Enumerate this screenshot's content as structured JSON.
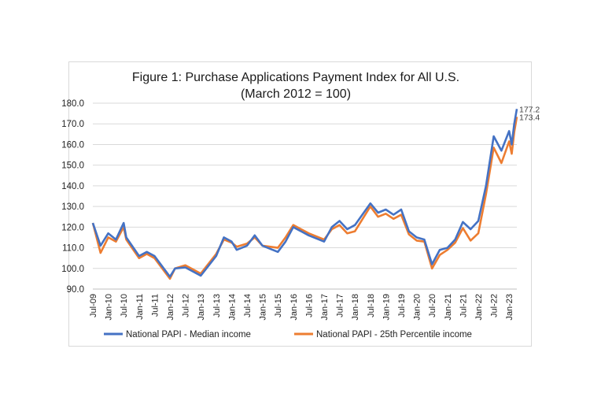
{
  "chart_data": {
    "type": "line",
    "title": "Figure 1: Purchase Applications Payment Index for All U.S.",
    "subtitle": "(March 2012 = 100)",
    "xlabel": "",
    "ylabel": "",
    "ylim": [
      90,
      180
    ],
    "y_ticks": [
      "90.0",
      "100.0",
      "110.0",
      "120.0",
      "130.0",
      "140.0",
      "150.0",
      "160.0",
      "170.0",
      "180.0"
    ],
    "x_ticks": [
      "Jul-09",
      "Jan-10",
      "Jul-10",
      "Jan-11",
      "Jul-11",
      "Jan-12",
      "Jul-12",
      "Jan-13",
      "Jul-13",
      "Jan-14",
      "Jul-14",
      "Jan-15",
      "Jul-15",
      "Jan-16",
      "Jul-16",
      "Jan-17",
      "Jul-17",
      "Jan-18",
      "Jul-18",
      "Jan-19",
      "Jul-19",
      "Jan-20",
      "Jul-20",
      "Jan-21",
      "Jul-21",
      "Jan-22",
      "Jul-22",
      "Jan-23"
    ],
    "grid": true,
    "legend_position": "bottom",
    "x_start": "Jul-09",
    "x_end": "Apr-23",
    "series": [
      {
        "name": "National PAPI - Median income",
        "color": "#4472C4",
        "end_label": "177.2",
        "points": [
          [
            "Jul-09",
            122
          ],
          [
            "Oct-09",
            111
          ],
          [
            "Jan-10",
            117
          ],
          [
            "Apr-10",
            114
          ],
          [
            "Jul-10",
            122
          ],
          [
            "Aug-10",
            115
          ],
          [
            "Jan-11",
            106
          ],
          [
            "Apr-11",
            108
          ],
          [
            "Jul-11",
            106
          ],
          [
            "Jan-12",
            96
          ],
          [
            "Mar-12",
            100
          ],
          [
            "Jul-12",
            100.5
          ],
          [
            "Jan-13",
            96.5
          ],
          [
            "Jul-13",
            106
          ],
          [
            "Oct-13",
            115
          ],
          [
            "Jan-14",
            113
          ],
          [
            "Mar-14",
            109
          ],
          [
            "Jul-14",
            111
          ],
          [
            "Oct-14",
            116
          ],
          [
            "Jan-15",
            111
          ],
          [
            "Jul-15",
            108
          ],
          [
            "Oct-15",
            113
          ],
          [
            "Jan-16",
            120
          ],
          [
            "Jul-16",
            116
          ],
          [
            "Jan-17",
            113
          ],
          [
            "Apr-17",
            120
          ],
          [
            "Jul-17",
            123
          ],
          [
            "Oct-17",
            119
          ],
          [
            "Jan-18",
            121
          ],
          [
            "Jul-18",
            131.5
          ],
          [
            "Oct-18",
            127
          ],
          [
            "Jan-19",
            128.5
          ],
          [
            "Apr-19",
            126
          ],
          [
            "Jul-19",
            128.5
          ],
          [
            "Oct-19",
            118
          ],
          [
            "Jan-20",
            115
          ],
          [
            "Apr-20",
            114
          ],
          [
            "Jul-20",
            102
          ],
          [
            "Oct-20",
            109
          ],
          [
            "Jan-21",
            110
          ],
          [
            "Apr-21",
            114
          ],
          [
            "Jul-21",
            122.5
          ],
          [
            "Oct-21",
            119
          ],
          [
            "Jan-22",
            123
          ],
          [
            "Apr-22",
            140
          ],
          [
            "Jul-22",
            164
          ],
          [
            "Oct-22",
            157
          ],
          [
            "Jan-23",
            166.5
          ],
          [
            "Feb-23",
            160
          ],
          [
            "Mar-23",
            170
          ],
          [
            "Apr-23",
            177.2
          ]
        ]
      },
      {
        "name": "National PAPI - 25th Percentile income",
        "color": "#ED7D31",
        "end_label": "173.4",
        "points": [
          [
            "Jul-09",
            122
          ],
          [
            "Oct-09",
            107.5
          ],
          [
            "Jan-10",
            115
          ],
          [
            "Apr-10",
            113
          ],
          [
            "Jul-10",
            120
          ],
          [
            "Aug-10",
            114
          ],
          [
            "Jan-11",
            105
          ],
          [
            "Apr-11",
            107
          ],
          [
            "Jul-11",
            105
          ],
          [
            "Jan-12",
            95
          ],
          [
            "Mar-12",
            100
          ],
          [
            "Jul-12",
            101.5
          ],
          [
            "Jan-13",
            97.5
          ],
          [
            "Jul-13",
            107
          ],
          [
            "Oct-13",
            114
          ],
          [
            "Jan-14",
            112.5
          ],
          [
            "Mar-14",
            110.5
          ],
          [
            "Jul-14",
            112
          ],
          [
            "Oct-14",
            115
          ],
          [
            "Jan-15",
            111
          ],
          [
            "Jul-15",
            110
          ],
          [
            "Oct-15",
            115
          ],
          [
            "Jan-16",
            121
          ],
          [
            "Jul-16",
            117
          ],
          [
            "Jan-17",
            114
          ],
          [
            "Apr-17",
            119
          ],
          [
            "Jul-17",
            121
          ],
          [
            "Oct-17",
            117
          ],
          [
            "Jan-18",
            118
          ],
          [
            "Jul-18",
            130
          ],
          [
            "Oct-18",
            125
          ],
          [
            "Jan-19",
            126.5
          ],
          [
            "Apr-19",
            124
          ],
          [
            "Jul-19",
            126
          ],
          [
            "Oct-19",
            116.5
          ],
          [
            "Jan-20",
            113.5
          ],
          [
            "Apr-20",
            113
          ],
          [
            "Jul-20",
            100
          ],
          [
            "Oct-20",
            106.5
          ],
          [
            "Jan-21",
            109
          ],
          [
            "Apr-21",
            112.5
          ],
          [
            "Jul-21",
            119.5
          ],
          [
            "Oct-21",
            113.5
          ],
          [
            "Jan-22",
            117
          ],
          [
            "Apr-22",
            136
          ],
          [
            "Jul-22",
            158.5
          ],
          [
            "Oct-22",
            151
          ],
          [
            "Jan-23",
            161.5
          ],
          [
            "Feb-23",
            155.5
          ],
          [
            "Mar-23",
            166
          ],
          [
            "Apr-23",
            173.4
          ]
        ]
      }
    ]
  }
}
